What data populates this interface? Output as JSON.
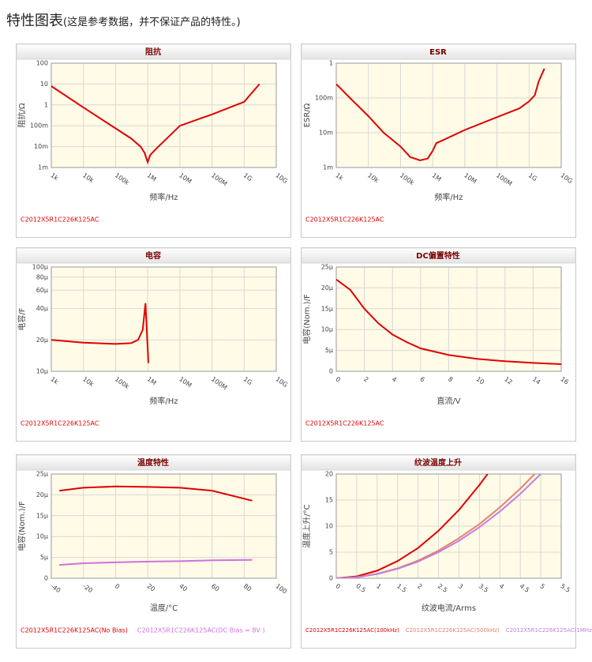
{
  "page_title": "特性图表",
  "note": "(这是参考数据，并不保证产品的特性。)",
  "chart_data": [
    {
      "type": "line",
      "title": "阻抗",
      "x_label": "频率/Hz",
      "y_label": "阻抗/Ω",
      "xlog": true,
      "ylog": true,
      "grid": true,
      "xlim": [
        1000,
        10000000000
      ],
      "ylim": [
        0.001,
        100
      ],
      "xticks": [
        {
          "value": 1000,
          "label": "1k"
        },
        {
          "value": 10000,
          "label": "10k"
        },
        {
          "value": 100000,
          "label": "100k"
        },
        {
          "value": 1000000,
          "label": "1M"
        },
        {
          "value": 10000000,
          "label": "10M"
        },
        {
          "value": 100000000,
          "label": "100M"
        },
        {
          "value": 1000000000,
          "label": "1G"
        },
        {
          "value": 10000000000,
          "label": "10G"
        }
      ],
      "yticks": [
        {
          "value": 0.001,
          "label": "1m"
        },
        {
          "value": 0.01,
          "label": "10m"
        },
        {
          "value": 0.1,
          "label": "100m"
        },
        1,
        10,
        100
      ],
      "series": [
        {
          "name": "C2012X5R1C226K125AC",
          "color": "#e00000",
          "x": [
            1000,
            10000,
            100000,
            300000,
            600000,
            800000,
            1000000,
            1200000,
            2000000,
            10000000,
            100000000,
            1000000000,
            3000000000
          ],
          "values": [
            8,
            0.75,
            0.075,
            0.025,
            0.01,
            0.005,
            0.0018,
            0.004,
            0.009,
            0.1,
            0.35,
            1.4,
            10
          ]
        }
      ]
    },
    {
      "type": "line",
      "title": "ESR",
      "x_label": "频率/Hz",
      "y_label": "ESR/Ω",
      "xlog": true,
      "ylog": true,
      "grid": true,
      "xlim": [
        1000,
        10000000000
      ],
      "ylim": [
        0.001,
        1
      ],
      "xticks": [
        {
          "value": 1000,
          "label": "1k"
        },
        {
          "value": 10000,
          "label": "10k"
        },
        {
          "value": 100000,
          "label": "100k"
        },
        {
          "value": 1000000,
          "label": "1M"
        },
        {
          "value": 10000000,
          "label": "10M"
        },
        {
          "value": 100000000,
          "label": "100M"
        },
        {
          "value": 1000000000,
          "label": "1G"
        },
        {
          "value": 10000000000,
          "label": "10G"
        }
      ],
      "yticks": [
        {
          "value": 0.001,
          "label": "1m"
        },
        {
          "value": 0.01,
          "label": "10m"
        },
        {
          "value": 0.1,
          "label": "100m"
        },
        1
      ],
      "series": [
        {
          "name": "C2012X5R1C226K125AC",
          "color": "#e00000",
          "x": [
            1000,
            3000,
            10000,
            30000,
            100000,
            200000,
            400000,
            700000,
            1000000,
            1300000,
            2000000,
            10000000,
            100000000,
            500000000,
            1000000000,
            1500000000,
            2000000000,
            3000000000
          ],
          "values": [
            0.25,
            0.09,
            0.03,
            0.01,
            0.004,
            0.002,
            0.0016,
            0.0018,
            0.003,
            0.005,
            0.006,
            0.012,
            0.028,
            0.05,
            0.08,
            0.12,
            0.3,
            0.7
          ]
        }
      ]
    },
    {
      "type": "line",
      "title": "电容",
      "x_label": "频率/Hz",
      "y_label": "电容/F",
      "xlog": true,
      "ylog": true,
      "grid": true,
      "xlim": [
        1000,
        10000000000
      ],
      "ylim": [
        10,
        100
      ],
      "xticks": [
        {
          "value": 1000,
          "label": "1k"
        },
        {
          "value": 10000,
          "label": "10k"
        },
        {
          "value": 100000,
          "label": "100k"
        },
        {
          "value": 1000000,
          "label": "1M"
        },
        {
          "value": 10000000,
          "label": "10M"
        },
        {
          "value": 100000000,
          "label": "100M"
        },
        {
          "value": 1000000000,
          "label": "1G"
        },
        {
          "value": 10000000000,
          "label": "10G"
        }
      ],
      "yticks": [
        {
          "value": 10,
          "label": "10µ"
        },
        {
          "value": 20,
          "label": "20µ"
        },
        {
          "value": 40,
          "label": "40µ"
        },
        {
          "value": 60,
          "label": "60µ"
        },
        {
          "value": 80,
          "label": "80µ"
        },
        {
          "value": 100,
          "label": "100µ"
        }
      ],
      "series": [
        {
          "name": "C2012X5R1C226K125AC",
          "color": "#e00000",
          "x": [
            1000,
            10000,
            100000,
            300000,
            500000,
            700000,
            850000,
            1050000
          ],
          "values": [
            20,
            18.8,
            18.3,
            18.6,
            20,
            25,
            45,
            12
          ]
        }
      ]
    },
    {
      "type": "line",
      "title": "DC偏置特性",
      "x_label": "直流/V",
      "y_label": "电容(Nom.)/F",
      "grid": true,
      "xlim": [
        0,
        16
      ],
      "ylim": [
        0,
        25
      ],
      "xticks": [
        0,
        2,
        4,
        6,
        8,
        10,
        12,
        14,
        16
      ],
      "yticks": [
        0,
        {
          "value": 5,
          "label": "5µ"
        },
        {
          "value": 10,
          "label": "10µ"
        },
        {
          "value": 15,
          "label": "15µ"
        },
        {
          "value": 20,
          "label": "20µ"
        },
        {
          "value": 25,
          "label": "25µ"
        }
      ],
      "series": [
        {
          "name": "C2012X5R1C226K125AC",
          "color": "#e00000",
          "x": [
            0,
            1,
            2,
            3,
            4,
            5,
            6,
            8,
            10,
            12,
            14,
            16
          ],
          "values": [
            22,
            19.5,
            15,
            11.5,
            8.8,
            7,
            5.5,
            3.9,
            3,
            2.4,
            2,
            1.7
          ]
        }
      ]
    },
    {
      "type": "line",
      "title": "温度特性",
      "x_label": "温度/°C",
      "y_label": "电容(Nom.)/F",
      "grid": true,
      "xlim": [
        -40,
        100
      ],
      "ylim": [
        0,
        25
      ],
      "xticks": [
        -40,
        -20,
        0,
        20,
        40,
        60,
        80,
        100
      ],
      "yticks": [
        0,
        {
          "value": 5,
          "label": "5µ"
        },
        {
          "value": 10,
          "label": "10µ"
        },
        {
          "value": 15,
          "label": "15µ"
        },
        {
          "value": 20,
          "label": "20µ"
        },
        {
          "value": 25,
          "label": "25µ"
        }
      ],
      "series": [
        {
          "name": "C2012X5R1C226K125AC(No Bias)",
          "color": "#e00000",
          "x": [
            -35,
            -20,
            0,
            20,
            40,
            60,
            85
          ],
          "values": [
            21,
            21.7,
            22,
            21.9,
            21.7,
            21,
            18.6
          ]
        },
        {
          "name": "C2012X5R1C226K125AC(DC Bias = 8V )",
          "color": "#d070e0",
          "x": [
            -35,
            -20,
            0,
            20,
            40,
            60,
            85
          ],
          "values": [
            3.2,
            3.6,
            3.8,
            4,
            4.1,
            4.3,
            4.4
          ]
        }
      ]
    },
    {
      "type": "line",
      "title": "纹波温度上升",
      "x_label": "纹波电流/Arms",
      "y_label": "温度上升/°C",
      "grid": true,
      "xlim": [
        0,
        5.5
      ],
      "ylim": [
        0,
        20
      ],
      "xticks": [
        0,
        0.5,
        1,
        1.5,
        2,
        2.5,
        3,
        3.5,
        4,
        4.5,
        5,
        5.5
      ],
      "yticks": [
        0,
        5,
        10,
        15,
        20
      ],
      "series": [
        {
          "name": "C2012X5R1C226K125AC(100kHz)",
          "color": "#e00000",
          "x": [
            0,
            0.5,
            1,
            1.5,
            2,
            2.5,
            3,
            3.5,
            3.7
          ],
          "values": [
            0,
            0.37,
            1.46,
            3.3,
            5.8,
            9.1,
            13.1,
            17.9,
            20
          ]
        },
        {
          "name": "C2012X5R1C226K125AC(500kHz)",
          "color": "#e88070",
          "x": [
            0,
            0.5,
            1,
            1.5,
            2,
            2.5,
            3,
            3.5,
            4,
            4.5,
            4.85
          ],
          "values": [
            0,
            0.21,
            0.85,
            1.9,
            3.4,
            5.3,
            7.7,
            10.4,
            13.6,
            17.2,
            20
          ]
        },
        {
          "name": "C2012X5R1C226K125AC(1MHz)",
          "color": "#c080e0",
          "x": [
            0,
            0.5,
            1,
            1.5,
            2,
            2.5,
            3,
            3.5,
            4,
            4.5,
            5
          ],
          "values": [
            0,
            0.2,
            0.8,
            1.8,
            3.2,
            5,
            7.2,
            9.8,
            12.8,
            16.2,
            20
          ]
        }
      ]
    }
  ]
}
